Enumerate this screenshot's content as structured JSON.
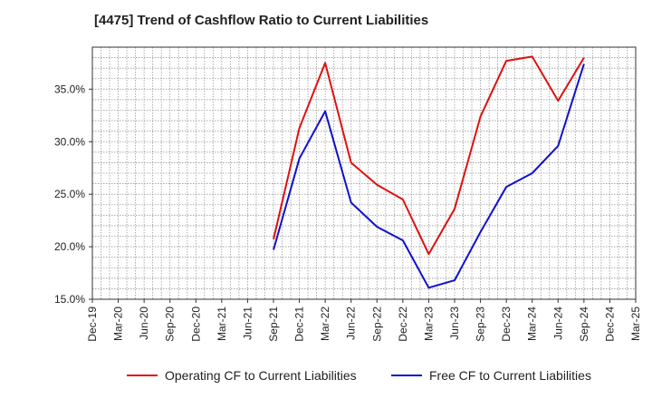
{
  "chart_data": {
    "type": "line",
    "title": "[4475]  Trend of Cashflow Ratio to Current Liabilities",
    "xlabel": "",
    "ylabel": "",
    "x_tick_labels": [
      "Dec-19",
      "Mar-20",
      "Jun-20",
      "Sep-20",
      "Dec-20",
      "Mar-21",
      "Jun-21",
      "Sep-21",
      "Dec-21",
      "Mar-22",
      "Jun-22",
      "Sep-22",
      "Dec-22",
      "Mar-23",
      "Jun-23",
      "Sep-23",
      "Dec-23",
      "Mar-24",
      "Jun-24",
      "Sep-24",
      "Dec-24",
      "Mar-25"
    ],
    "x_extra_label": "Mar-25",
    "x": [
      "Sep-21",
      "Dec-21",
      "Mar-22",
      "Jun-22",
      "Sep-22",
      "Dec-22",
      "Mar-23",
      "Jun-23",
      "Sep-23",
      "Dec-23",
      "Mar-24",
      "Jun-24",
      "Sep-24"
    ],
    "y_ticks": [
      "15.0%",
      "20.0%",
      "25.0%",
      "30.0%",
      "35.0%"
    ],
    "ylim": [
      15.0,
      39.0
    ],
    "grid": true,
    "legend_position": "bottom",
    "series": [
      {
        "name": "Operating CF to Current Liabilities",
        "color": "#dd1111",
        "values": [
          20.7,
          31.3,
          37.5,
          28.0,
          25.9,
          24.5,
          19.3,
          23.6,
          32.4,
          37.7,
          38.1,
          33.9,
          38.0
        ]
      },
      {
        "name": "Free CF to Current Liabilities",
        "color": "#1111cc",
        "values": [
          19.7,
          28.4,
          32.9,
          24.2,
          21.9,
          20.6,
          16.1,
          16.8,
          21.4,
          25.7,
          27.0,
          29.6,
          37.4
        ]
      }
    ]
  }
}
